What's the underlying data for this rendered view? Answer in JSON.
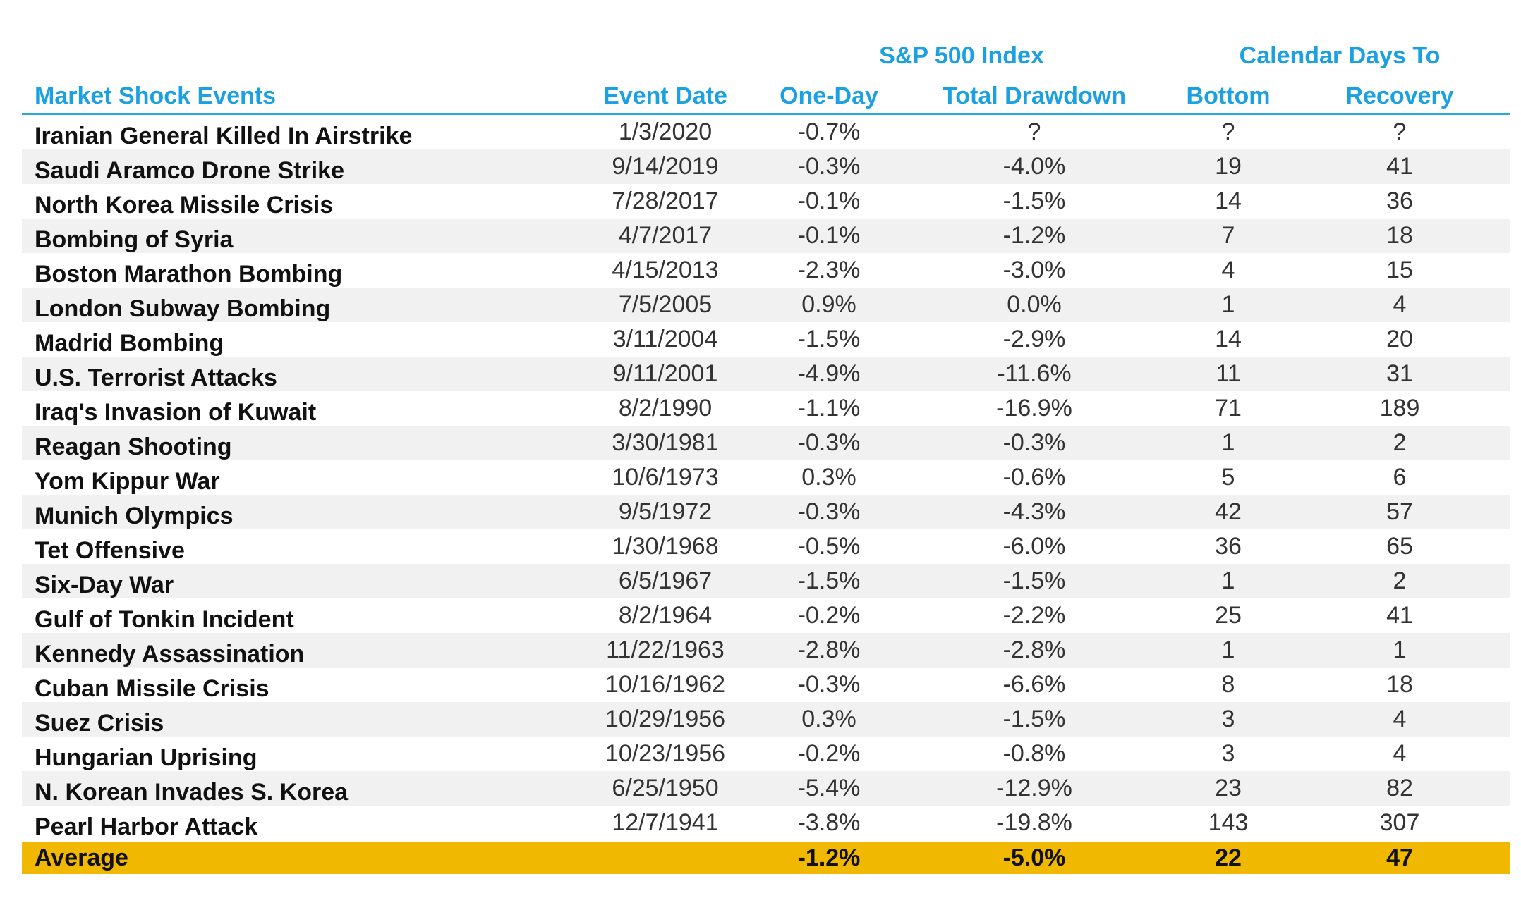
{
  "chart_data": {
    "type": "table",
    "group_headers": {
      "sp500": "S&P 500 Index",
      "calendar_days": "Calendar Days To"
    },
    "columns": [
      "Market Shock Events",
      "Event Date",
      "One-Day",
      "Total Drawdown",
      "Bottom",
      "Recovery"
    ],
    "rows": [
      [
        "Iranian General Killed In Airstrike",
        "1/3/2020",
        "-0.7%",
        "?",
        "?",
        "?"
      ],
      [
        "Saudi Aramco Drone Strike",
        "9/14/2019",
        "-0.3%",
        "-4.0%",
        "19",
        "41"
      ],
      [
        "North Korea Missile Crisis",
        "7/28/2017",
        "-0.1%",
        "-1.5%",
        "14",
        "36"
      ],
      [
        "Bombing of Syria",
        "4/7/2017",
        "-0.1%",
        "-1.2%",
        "7",
        "18"
      ],
      [
        "Boston Marathon Bombing",
        "4/15/2013",
        "-2.3%",
        "-3.0%",
        "4",
        "15"
      ],
      [
        "London Subway Bombing",
        "7/5/2005",
        "0.9%",
        "0.0%",
        "1",
        "4"
      ],
      [
        "Madrid Bombing",
        "3/11/2004",
        "-1.5%",
        "-2.9%",
        "14",
        "20"
      ],
      [
        "U.S. Terrorist Attacks",
        "9/11/2001",
        "-4.9%",
        "-11.6%",
        "11",
        "31"
      ],
      [
        "Iraq's Invasion of Kuwait",
        "8/2/1990",
        "-1.1%",
        "-16.9%",
        "71",
        "189"
      ],
      [
        "Reagan Shooting",
        "3/30/1981",
        "-0.3%",
        "-0.3%",
        "1",
        "2"
      ],
      [
        "Yom Kippur War",
        "10/6/1973",
        "0.3%",
        "-0.6%",
        "5",
        "6"
      ],
      [
        "Munich Olympics",
        "9/5/1972",
        "-0.3%",
        "-4.3%",
        "42",
        "57"
      ],
      [
        "Tet Offensive",
        "1/30/1968",
        "-0.5%",
        "-6.0%",
        "36",
        "65"
      ],
      [
        "Six-Day War",
        "6/5/1967",
        "-1.5%",
        "-1.5%",
        "1",
        "2"
      ],
      [
        "Gulf of Tonkin Incident",
        "8/2/1964",
        "-0.2%",
        "-2.2%",
        "25",
        "41"
      ],
      [
        "Kennedy Assassination",
        "11/22/1963",
        "-2.8%",
        "-2.8%",
        "1",
        "1"
      ],
      [
        "Cuban Missile Crisis",
        "10/16/1962",
        "-0.3%",
        "-6.6%",
        "8",
        "18"
      ],
      [
        "Suez Crisis",
        "10/29/1956",
        "0.3%",
        "-1.5%",
        "3",
        "4"
      ],
      [
        "Hungarian Uprising",
        "10/23/1956",
        "-0.2%",
        "-0.8%",
        "3",
        "4"
      ],
      [
        "N. Korean Invades S. Korea",
        "6/25/1950",
        "-5.4%",
        "-12.9%",
        "23",
        "82"
      ],
      [
        "Pearl Harbor Attack",
        "12/7/1941",
        "-3.8%",
        "-19.8%",
        "143",
        "307"
      ]
    ],
    "average": [
      "Average",
      "",
      "-1.2%",
      "-5.0%",
      "22",
      "47"
    ]
  },
  "colors": {
    "header_text": "#1ba1e2",
    "header_rule": "#29a8df",
    "stripe": "#f1f1f1",
    "average_highlight": "#f1b800"
  }
}
